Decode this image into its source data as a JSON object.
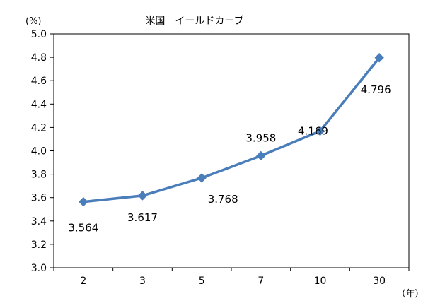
{
  "chart_data": {
    "type": "line",
    "title": "米国　イールドカーブ",
    "y_unit": "(%)",
    "x_unit": "（年）",
    "categories": [
      "2",
      "3",
      "5",
      "7",
      "10",
      "30"
    ],
    "series": [
      {
        "values": [
          3.564,
          3.617,
          3.768,
          3.958,
          4.169,
          4.796
        ],
        "data_labels": [
          "3.564",
          "3.617",
          "3.768",
          "3.958",
          "4.169",
          "4.796"
        ],
        "color": "#4a7ebb",
        "marker": "diamond"
      }
    ],
    "ylim": [
      3.0,
      5.0
    ],
    "yticks": [
      "3.0",
      "3.2",
      "3.4",
      "3.6",
      "3.8",
      "4.0",
      "4.2",
      "4.4",
      "4.6",
      "4.8",
      "5.0"
    ],
    "grid": false,
    "legend": "none"
  }
}
